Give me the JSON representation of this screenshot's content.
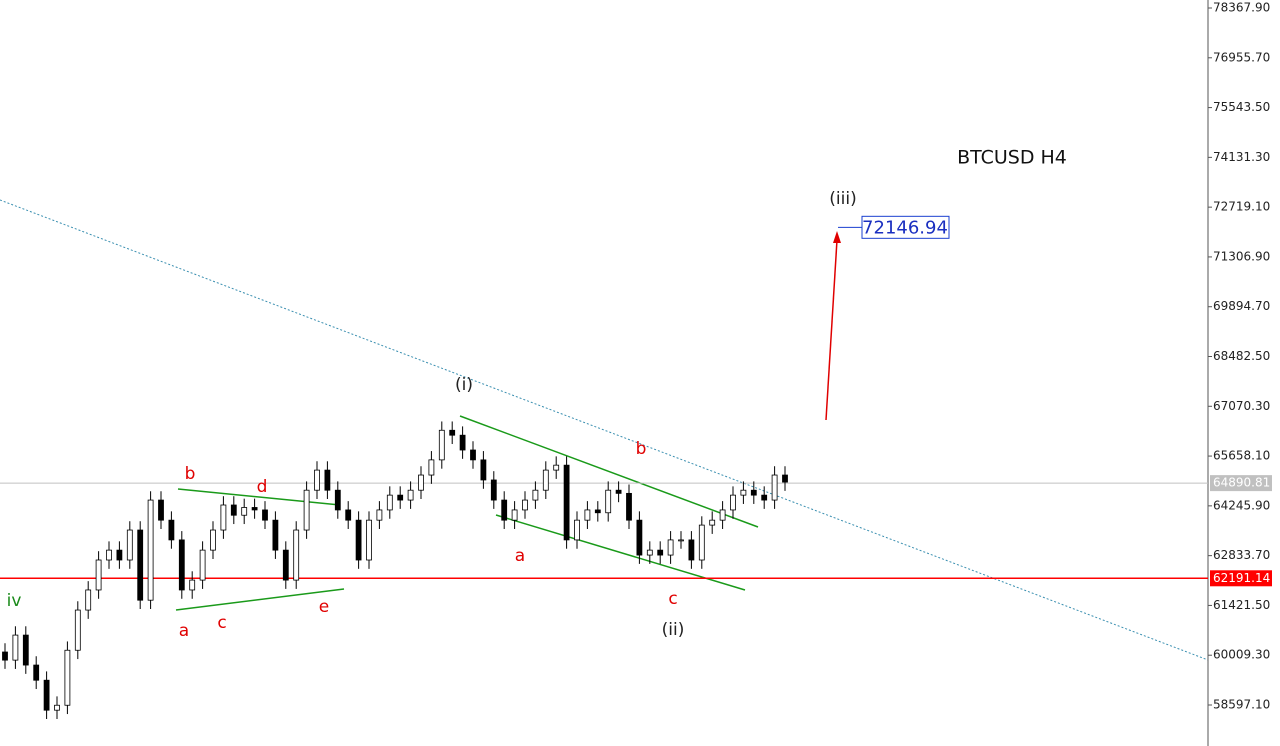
{
  "chart_data": {
    "type": "candlestick",
    "title": "BTCUSD H4",
    "ylim": [
      57434,
      78595
    ],
    "yticks": [
      {
        "value": 78367.9,
        "label": "78367.90"
      },
      {
        "value": 76955.7,
        "label": "76955.70"
      },
      {
        "value": 75543.5,
        "label": "75543.50"
      },
      {
        "value": 74131.3,
        "label": "74131.30"
      },
      {
        "value": 72719.1,
        "label": "72719.10"
      },
      {
        "value": 71306.9,
        "label": "71306.90"
      },
      {
        "value": 69894.7,
        "label": "69894.70"
      },
      {
        "value": 68482.5,
        "label": "68482.50"
      },
      {
        "value": 67070.3,
        "label": "67070.30"
      },
      {
        "value": 65658.1,
        "label": "65658.10"
      },
      {
        "value": 64245.9,
        "label": "64245.90"
      },
      {
        "value": 62833.7,
        "label": "62833.70"
      },
      {
        "value": 61421.5,
        "label": "61421.50"
      },
      {
        "value": 60009.3,
        "label": "60009.30"
      },
      {
        "value": 58597.1,
        "label": "58597.10"
      }
    ],
    "open": [
      60100,
      59870,
      60580,
      59730,
      59300,
      58450,
      58590,
      60150,
      61290,
      61860,
      62710,
      62990,
      62710,
      63560,
      61570,
      64410,
      63840,
      63280,
      61860,
      62140,
      62990,
      63560,
      64270,
      63980,
      64200,
      64130,
      63840,
      62990,
      62140,
      63560,
      64690,
      65260,
      64690,
      64130,
      63840,
      62710,
      63840,
      64130,
      64550,
      64410,
      64690,
      65120,
      65550,
      66390,
      66250,
      65830,
      65550,
      64980,
      64410,
      63840,
      64130,
      64410,
      64690,
      65260,
      65400,
      63280,
      63840,
      64130,
      64050,
      64690,
      64600,
      63840,
      62850,
      62990,
      62850,
      63280,
      63280,
      62710,
      63700,
      63840,
      64130,
      64550,
      64690,
      64550,
      64410,
      65120
    ],
    "high": [
      60350,
      60830,
      60830,
      59980,
      59550,
      58840,
      60400,
      61540,
      62110,
      62960,
      63240,
      63240,
      63810,
      63810,
      64660,
      64660,
      64090,
      63530,
      62390,
      63240,
      63810,
      64520,
      64520,
      64450,
      64450,
      64380,
      64090,
      63240,
      63810,
      64940,
      65510,
      65510,
      64940,
      64380,
      64090,
      64090,
      64380,
      64800,
      64800,
      64940,
      65370,
      65800,
      66640,
      66640,
      66500,
      66080,
      65800,
      65230,
      64660,
      64380,
      64660,
      64940,
      65510,
      65650,
      65650,
      64090,
      64380,
      64380,
      64940,
      64940,
      64850,
      64090,
      63240,
      63240,
      63530,
      63530,
      63530,
      63950,
      64090,
      64380,
      64800,
      64940,
      64940,
      64800,
      65370,
      65370
    ],
    "low": [
      59620,
      59620,
      59480,
      59050,
      58200,
      58200,
      58340,
      59900,
      61040,
      61610,
      62460,
      62460,
      62460,
      61320,
      61320,
      63590,
      63030,
      61610,
      61610,
      61890,
      62740,
      63310,
      63730,
      63730,
      63880,
      63590,
      62740,
      61890,
      61890,
      63310,
      64440,
      64440,
      63880,
      63590,
      62460,
      62460,
      63590,
      63880,
      64160,
      64160,
      64440,
      64870,
      65300,
      66000,
      65580,
      65300,
      64730,
      64160,
      63590,
      63590,
      63880,
      64160,
      64440,
      65010,
      63030,
      63030,
      63590,
      63800,
      63800,
      64350,
      63590,
      62600,
      62600,
      62600,
      62600,
      63030,
      62460,
      62460,
      63450,
      63590,
      63880,
      64300,
      64300,
      64160,
      64160,
      64670
    ],
    "close": [
      59870,
      60580,
      59730,
      59300,
      58450,
      58590,
      60150,
      61290,
      61860,
      62710,
      62990,
      62710,
      63560,
      61570,
      64410,
      63840,
      63280,
      61860,
      62140,
      62990,
      63560,
      64270,
      63980,
      64200,
      64130,
      63840,
      62990,
      62140,
      63560,
      64690,
      65260,
      64690,
      64130,
      63840,
      62710,
      63840,
      64130,
      64550,
      64410,
      64690,
      65120,
      65550,
      66390,
      66250,
      65830,
      65550,
      64980,
      64410,
      63840,
      64130,
      64410,
      64690,
      65260,
      65400,
      63280,
      63840,
      64130,
      64050,
      64690,
      64600,
      63840,
      62850,
      62990,
      62850,
      63280,
      63280,
      62710,
      63700,
      63840,
      64130,
      64550,
      64690,
      64550,
      64410,
      65120,
      64920
    ],
    "price_lines": [
      {
        "value": 64890.81,
        "color": "#c0c0c0"
      },
      {
        "value": 62191.14,
        "color": "#ff0000"
      }
    ],
    "target": 72146.94,
    "annotations": [
      {
        "text": "iv",
        "color": "#1a8a1a"
      },
      {
        "text": "a",
        "color": "#e00000"
      },
      {
        "text": "b",
        "color": "#e00000"
      },
      {
        "text": "c",
        "color": "#e00000"
      },
      {
        "text": "d",
        "color": "#e00000"
      },
      {
        "text": "e",
        "color": "#e00000"
      },
      {
        "text": "(i)",
        "color": "#222222"
      },
      {
        "text": "a",
        "color": "#e00000"
      },
      {
        "text": "b",
        "color": "#e00000"
      },
      {
        "text": "c",
        "color": "#e00000"
      },
      {
        "text": "(ii)",
        "color": "#222222"
      },
      {
        "text": "(iii)",
        "color": "#222222"
      }
    ]
  }
}
